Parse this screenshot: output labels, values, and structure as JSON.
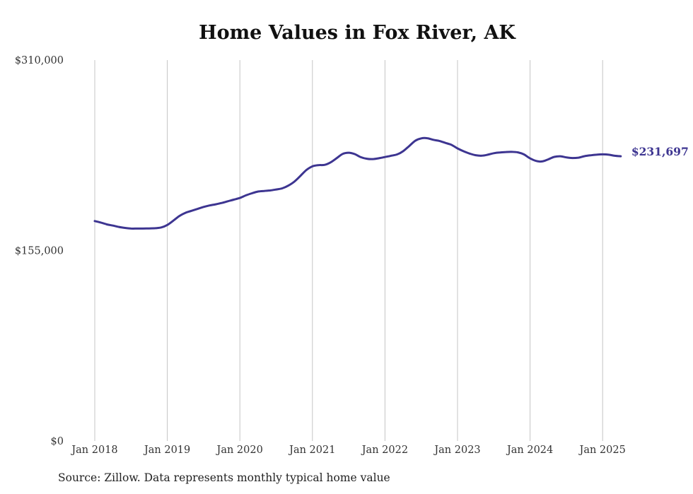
{
  "chart_data": {
    "type": "line",
    "title": "Home Values in Fox River, AK",
    "xlabel": "",
    "ylabel": "",
    "x_tick_labels": [
      "Jan 2018",
      "Jan 2019",
      "Jan 2020",
      "Jan 2021",
      "Jan 2022",
      "Jan 2023",
      "Jan 2024",
      "Jan 2025"
    ],
    "y_tick_labels": [
      "$0",
      "$155,000",
      "$310,000"
    ],
    "ylim": [
      0,
      310000
    ],
    "xlim": [
      "2018-01",
      "2025-04"
    ],
    "grid": {
      "vertical": true,
      "horizontal": false
    },
    "series": [
      {
        "color": "#3d3591",
        "end_label": "$231,697",
        "points": [
          [
            "2018-01",
            179000
          ],
          [
            "2018-02",
            177800
          ],
          [
            "2018-03",
            176300
          ],
          [
            "2018-04",
            175300
          ],
          [
            "2018-05",
            174200
          ],
          [
            "2018-06",
            173400
          ],
          [
            "2018-07",
            172900
          ],
          [
            "2018-08",
            172900
          ],
          [
            "2018-09",
            172900
          ],
          [
            "2018-10",
            173000
          ],
          [
            "2018-11",
            173200
          ],
          [
            "2018-12",
            173800
          ],
          [
            "2019-01",
            175800
          ],
          [
            "2019-02",
            179300
          ],
          [
            "2019-03",
            183100
          ],
          [
            "2019-04",
            185700
          ],
          [
            "2019-05",
            187300
          ],
          [
            "2019-06",
            188900
          ],
          [
            "2019-07",
            190500
          ],
          [
            "2019-08",
            191700
          ],
          [
            "2019-09",
            192600
          ],
          [
            "2019-10",
            193700
          ],
          [
            "2019-11",
            195100
          ],
          [
            "2019-12",
            196400
          ],
          [
            "2020-01",
            197800
          ],
          [
            "2020-02",
            199900
          ],
          [
            "2020-03",
            201600
          ],
          [
            "2020-04",
            203000
          ],
          [
            "2020-05",
            203500
          ],
          [
            "2020-06",
            203900
          ],
          [
            "2020-07",
            204700
          ],
          [
            "2020-08",
            205600
          ],
          [
            "2020-09",
            207800
          ],
          [
            "2020-10",
            211000
          ],
          [
            "2020-11",
            215700
          ],
          [
            "2020-12",
            220500
          ],
          [
            "2021-01",
            223500
          ],
          [
            "2021-02",
            224500
          ],
          [
            "2021-03",
            224700
          ],
          [
            "2021-04",
            226700
          ],
          [
            "2021-05",
            230100
          ],
          [
            "2021-06",
            233600
          ],
          [
            "2021-07",
            234600
          ],
          [
            "2021-08",
            233500
          ],
          [
            "2021-09",
            231000
          ],
          [
            "2021-10",
            229700
          ],
          [
            "2021-11",
            229400
          ],
          [
            "2021-12",
            230100
          ],
          [
            "2022-01",
            231100
          ],
          [
            "2022-02",
            232100
          ],
          [
            "2022-03",
            233200
          ],
          [
            "2022-04",
            235800
          ],
          [
            "2022-05",
            240000
          ],
          [
            "2022-06",
            244300
          ],
          [
            "2022-07",
            246300
          ],
          [
            "2022-08",
            246400
          ],
          [
            "2022-09",
            245100
          ],
          [
            "2022-10",
            244200
          ],
          [
            "2022-11",
            242600
          ],
          [
            "2022-12",
            241000
          ],
          [
            "2023-01",
            238100
          ],
          [
            "2023-02",
            235800
          ],
          [
            "2023-03",
            233900
          ],
          [
            "2023-04",
            232600
          ],
          [
            "2023-05",
            232200
          ],
          [
            "2023-06",
            233000
          ],
          [
            "2023-07",
            234200
          ],
          [
            "2023-08",
            234800
          ],
          [
            "2023-09",
            235200
          ],
          [
            "2023-10",
            235300
          ],
          [
            "2023-11",
            234900
          ],
          [
            "2023-12",
            233200
          ],
          [
            "2024-01",
            230000
          ],
          [
            "2024-02",
            227900
          ],
          [
            "2024-03",
            227500
          ],
          [
            "2024-04",
            229200
          ],
          [
            "2024-05",
            231200
          ],
          [
            "2024-06",
            231700
          ],
          [
            "2024-07",
            230800
          ],
          [
            "2024-08",
            230300
          ],
          [
            "2024-09",
            230600
          ],
          [
            "2024-10",
            231800
          ],
          [
            "2024-11",
            232500
          ],
          [
            "2024-12",
            233000
          ],
          [
            "2025-01",
            233300
          ],
          [
            "2025-02",
            233000
          ],
          [
            "2025-03",
            232100
          ],
          [
            "2025-04",
            231697
          ]
        ]
      }
    ]
  },
  "source_note": "Source: Zillow. Data represents monthly typical home value"
}
